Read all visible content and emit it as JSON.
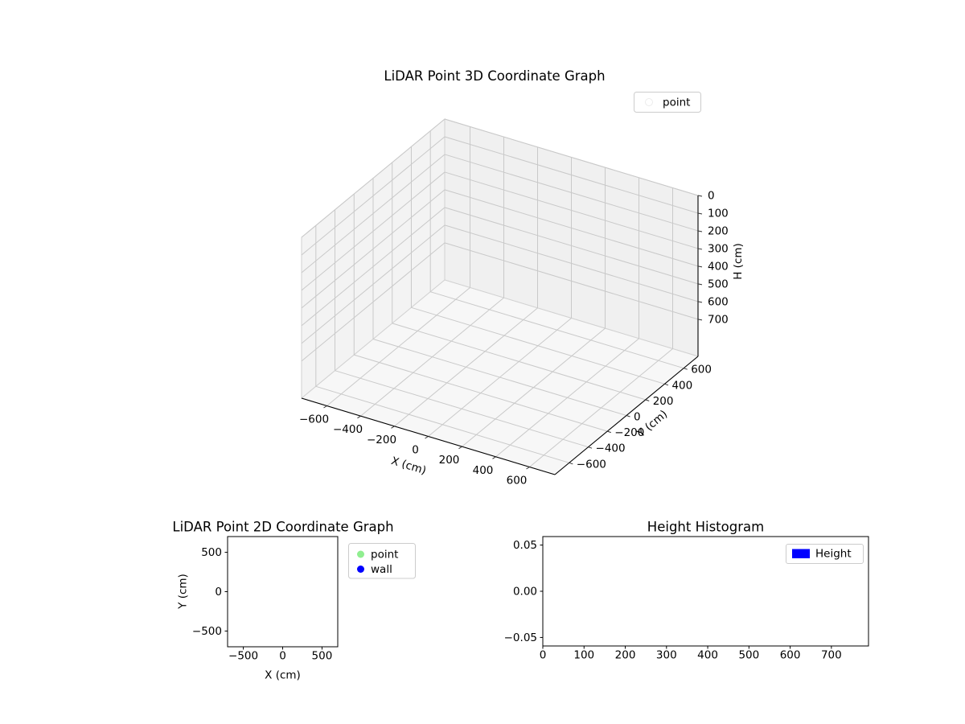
{
  "chart_data": [
    {
      "id": "lidar-3d",
      "type": "scatter3d",
      "title": "LiDAR Point 3D Coordinate Graph",
      "xlabel": "X (cm)",
      "ylabel": "Y (cm)",
      "zlabel": "H (cm)",
      "xlim": [
        -750,
        750
      ],
      "ylim": [
        -750,
        750
      ],
      "zlim": [
        0,
        910
      ],
      "zaxis_inverted": true,
      "grid": true,
      "xticks": {
        "values": [
          -600,
          -400,
          -200,
          0,
          200,
          400,
          600
        ],
        "labels": [
          "−600",
          "−400",
          "−200",
          "0",
          "200",
          "400",
          "600"
        ]
      },
      "yticks": {
        "values": [
          -600,
          -400,
          -200,
          0,
          200,
          400,
          600
        ],
        "labels": [
          "−600",
          "−400",
          "−200",
          "0",
          "200",
          "400",
          "600"
        ]
      },
      "zticks": {
        "values": [
          0,
          100,
          200,
          300,
          400,
          500,
          600,
          700
        ],
        "labels": [
          "0",
          "100",
          "200",
          "300",
          "400",
          "500",
          "600",
          "700"
        ]
      },
      "legend": {
        "position": "upper right",
        "entries": [
          {
            "label": "point",
            "marker": "circle",
            "color": "#ffffff"
          }
        ]
      },
      "series": [
        {
          "name": "point",
          "points": []
        }
      ]
    },
    {
      "id": "lidar-2d",
      "type": "scatter",
      "title": "LiDAR Point 2D Coordinate Graph",
      "xlabel": "X (cm)",
      "ylabel": "Y (cm)",
      "xlim": [
        -700,
        700
      ],
      "ylim": [
        -700,
        700
      ],
      "grid": false,
      "xticks": {
        "values": [
          -500,
          0,
          500
        ],
        "labels": [
          "−500",
          "0",
          "500"
        ]
      },
      "yticks": {
        "values": [
          500,
          0,
          -500
        ],
        "labels": [
          "500",
          "0",
          "−500"
        ]
      },
      "legend": {
        "position": "outside right",
        "entries": [
          {
            "label": "point",
            "marker": "circle",
            "color": "#90ee90"
          },
          {
            "label": "wall",
            "marker": "circle",
            "color": "#0000ff"
          }
        ]
      },
      "series": [
        {
          "name": "point",
          "points": []
        },
        {
          "name": "wall",
          "points": []
        }
      ]
    },
    {
      "id": "height-histogram",
      "type": "bar",
      "title": "Height Histogram",
      "xlabel": "",
      "ylabel": "",
      "xlim": [
        0,
        790
      ],
      "ylim": [
        -0.0592,
        0.0592
      ],
      "grid": false,
      "xticks": {
        "values": [
          0,
          100,
          200,
          300,
          400,
          500,
          600,
          700
        ],
        "labels": [
          "0",
          "100",
          "200",
          "300",
          "400",
          "500",
          "600",
          "700"
        ]
      },
      "yticks": {
        "values": [
          0.05,
          0,
          -0.05
        ],
        "labels": [
          "0.05",
          "0.00",
          "−0.05"
        ]
      },
      "legend": {
        "position": "upper right",
        "entries": [
          {
            "label": "Height",
            "marker": "rect",
            "color": "#0000ff"
          }
        ]
      },
      "values": []
    }
  ]
}
